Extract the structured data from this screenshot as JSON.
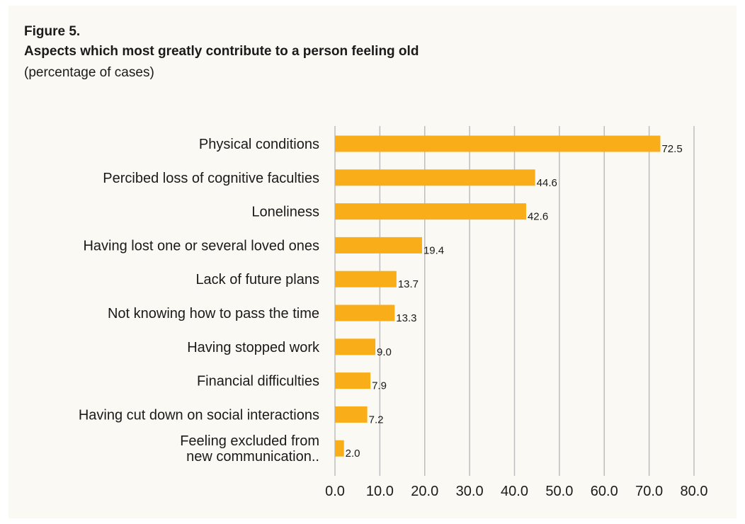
{
  "figure_label": "Figure 5.",
  "chart_data": {
    "type": "bar",
    "orientation": "horizontal",
    "title": "Aspects which most greatly contribute to a person feeling old",
    "subtitle": "(percentage of cases)",
    "categories": [
      "Physical conditions",
      "Percibed loss of cognitive faculties",
      "Loneliness",
      "Having lost one or several loved ones",
      "Lack of future plans",
      "Not knowing how to pass the time",
      "Having stopped work",
      "Financial difficulties",
      "Having cut down on social interactions",
      "Feeling excluded from\nnew communication.."
    ],
    "values": [
      72.5,
      44.6,
      42.6,
      19.4,
      13.7,
      13.3,
      9.0,
      7.9,
      7.2,
      2.0
    ],
    "value_labels": [
      "72.5",
      "44.6",
      "42.6",
      "19.4",
      "13.7",
      "13.3",
      "9.0",
      "7.9",
      "7.2",
      "2.0"
    ],
    "x_ticks": [
      "0.0",
      "10.0",
      "20.0",
      "30.0",
      "40.0",
      "50.0",
      "60.0",
      "70.0",
      "80.0"
    ],
    "xlim": [
      0,
      80
    ],
    "grid": "vertical",
    "bar_color": "#f9ad19",
    "grid_color": "#bdbdbd",
    "background_color": "#faf9f3"
  }
}
